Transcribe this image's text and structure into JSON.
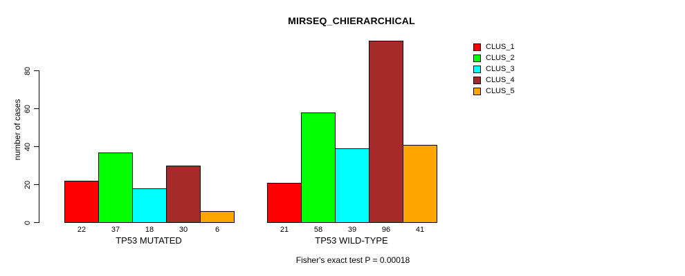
{
  "chart_data": {
    "type": "bar",
    "title": "MIRSEQ_CHIERARCHICAL",
    "ylabel": "number of cases",
    "xlabel": "",
    "yticks": [
      0,
      20,
      40,
      60,
      80
    ],
    "ylim": [
      0,
      96
    ],
    "grid": false,
    "legend_position": "right",
    "legend": [
      {
        "label": "CLUS_1",
        "color": "#FF0000"
      },
      {
        "label": "CLUS_2",
        "color": "#00FF00"
      },
      {
        "label": "CLUS_3",
        "color": "#00FFFF"
      },
      {
        "label": "CLUS_4",
        "color": "#A52A2A"
      },
      {
        "label": "CLUS_5",
        "color": "#FFA500"
      }
    ],
    "groups": [
      {
        "label": "TP53 MUTATED",
        "values": [
          22,
          37,
          18,
          30,
          6
        ]
      },
      {
        "label": "TP53 WILD-TYPE",
        "values": [
          21,
          58,
          39,
          96,
          41
        ]
      }
    ],
    "annotation": "Fisher's exact test P = 0.00018"
  }
}
